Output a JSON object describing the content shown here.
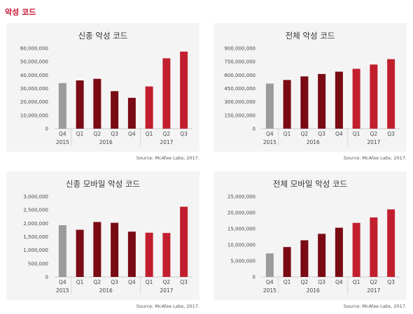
{
  "page": {
    "title": "악성 코드"
  },
  "colors": {
    "gray": "#9b9b9b",
    "dark_red": "#7a0a14",
    "red": "#c21f2e",
    "title_red": "#c8102e"
  },
  "chart_data": [
    {
      "type": "bar",
      "title": "신종 악성 코드",
      "source": "Source: McAfee Labs, 2017.",
      "categories": [
        "Q4",
        "Q1",
        "Q2",
        "Q3",
        "Q4",
        "Q1",
        "Q2",
        "Q3"
      ],
      "year_groups": [
        {
          "label": "2015",
          "span": [
            0,
            0
          ]
        },
        {
          "label": "2016",
          "span": [
            1,
            4
          ]
        },
        {
          "label": "2017",
          "span": [
            5,
            7
          ]
        }
      ],
      "values": [
        34000000,
        36000000,
        37200000,
        28000000,
        23000000,
        31500000,
        52500000,
        57500000
      ],
      "bar_colors": [
        "gray",
        "dark_red",
        "dark_red",
        "dark_red",
        "dark_red",
        "red",
        "red",
        "red"
      ],
      "ylim": [
        0,
        60000000
      ],
      "yticks": [
        0,
        10000000,
        20000000,
        30000000,
        40000000,
        50000000,
        60000000
      ],
      "ytick_labels": [
        "0",
        "10,000,000",
        "20,000,000",
        "30,000,000",
        "40,000,000",
        "50,000,000",
        "60,000,000"
      ]
    },
    {
      "type": "bar",
      "title": "전체 악성 코드",
      "source": "Source: McAfee Labs, 2017.",
      "categories": [
        "Q4",
        "Q1",
        "Q2",
        "Q3",
        "Q4",
        "Q1",
        "Q2",
        "Q3"
      ],
      "year_groups": [
        {
          "label": "2015",
          "span": [
            0,
            0
          ]
        },
        {
          "label": "2016",
          "span": [
            1,
            4
          ]
        },
        {
          "label": "2017",
          "span": [
            5,
            7
          ]
        }
      ],
      "values": [
        505000000,
        545000000,
        585000000,
        612000000,
        638000000,
        670000000,
        718000000,
        778000000
      ],
      "bar_colors": [
        "gray",
        "dark_red",
        "dark_red",
        "dark_red",
        "dark_red",
        "red",
        "red",
        "red"
      ],
      "ylim": [
        0,
        900000000
      ],
      "yticks": [
        0,
        150000000,
        300000000,
        450000000,
        600000000,
        750000000,
        900000000
      ],
      "ytick_labels": [
        "0",
        "150,000,000",
        "300,000,000",
        "450,000,000",
        "600,000,000",
        "750,000,000",
        "900,000,000"
      ]
    },
    {
      "type": "bar",
      "title": "신종 모바일 악성 코드",
      "source": "Source: McAfee Labs, 2017.",
      "categories": [
        "Q4",
        "Q1",
        "Q2",
        "Q3",
        "Q4",
        "Q1",
        "Q2",
        "Q3"
      ],
      "year_groups": [
        {
          "label": "2015",
          "span": [
            0,
            0
          ]
        },
        {
          "label": "2016",
          "span": [
            1,
            4
          ]
        },
        {
          "label": "2017",
          "span": [
            5,
            7
          ]
        }
      ],
      "values": [
        1930000,
        1760000,
        2050000,
        2020000,
        1690000,
        1650000,
        1640000,
        2620000
      ],
      "bar_colors": [
        "gray",
        "dark_red",
        "dark_red",
        "dark_red",
        "dark_red",
        "red",
        "red",
        "red"
      ],
      "ylim": [
        0,
        3000000
      ],
      "yticks": [
        0,
        500000,
        1000000,
        1500000,
        2000000,
        2500000,
        3000000
      ],
      "ytick_labels": [
        "0",
        "500,000",
        "1,000,000",
        "1,500,000",
        "2,000,000",
        "2,500,000",
        "3,000,000"
      ]
    },
    {
      "type": "bar",
      "title": "전체 모바일 악성 코드",
      "source": "Source: McAfee Labs, 2017.",
      "categories": [
        "Q4",
        "Q1",
        "Q2",
        "Q3",
        "Q4",
        "Q1",
        "Q2",
        "Q3"
      ],
      "year_groups": [
        {
          "label": "2015",
          "span": [
            0,
            0
          ]
        },
        {
          "label": "2016",
          "span": [
            1,
            4
          ]
        },
        {
          "label": "2017",
          "span": [
            5,
            7
          ]
        }
      ],
      "values": [
        7300000,
        9300000,
        11400000,
        13400000,
        15300000,
        16800000,
        18500000,
        21000000
      ],
      "bar_colors": [
        "gray",
        "dark_red",
        "dark_red",
        "dark_red",
        "dark_red",
        "red",
        "red",
        "red"
      ],
      "ylim": [
        0,
        25000000
      ],
      "yticks": [
        0,
        5000000,
        10000000,
        15000000,
        20000000,
        25000000
      ],
      "ytick_labels": [
        "0",
        "5,000,000",
        "10,000,000",
        "15,000,000",
        "20,000,000",
        "25,000,000"
      ]
    }
  ]
}
